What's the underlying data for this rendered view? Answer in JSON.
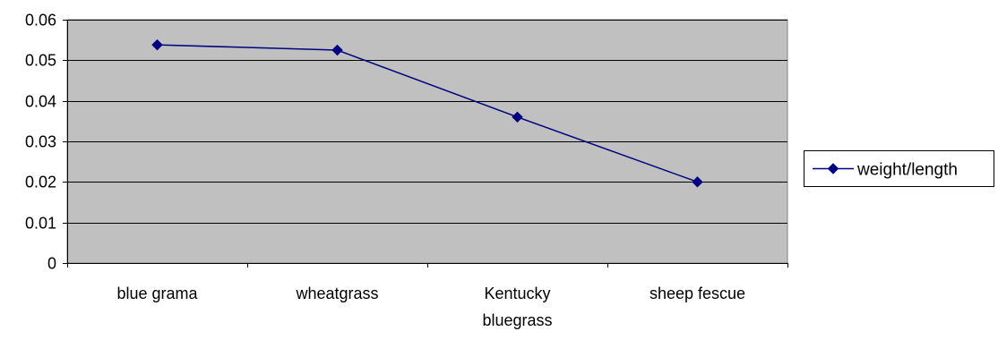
{
  "chart_data": {
    "type": "line",
    "title": "",
    "xlabel": "",
    "ylabel": "",
    "categories": [
      "blue grama",
      "wheatgrass",
      "Kentucky bluegrass",
      "sheep fescue"
    ],
    "category_label_lines": [
      [
        "blue grama"
      ],
      [
        "wheatgrass"
      ],
      [
        "Kentucky",
        "bluegrass"
      ],
      [
        "sheep fescue"
      ]
    ],
    "series": [
      {
        "name": "weight/length",
        "values": [
          0.0538,
          0.0525,
          0.036,
          0.02
        ],
        "color": "#000080",
        "marker": "diamond"
      }
    ],
    "ylim": [
      0,
      0.06
    ],
    "yticks": [
      0,
      0.01,
      0.02,
      0.03,
      0.04,
      0.05,
      0.06
    ],
    "ytick_labels": [
      "0",
      "0.01",
      "0.02",
      "0.03",
      "0.04",
      "0.05",
      "0.06"
    ],
    "grid": true,
    "legend_position": "right",
    "plot_background": "#c0c0c0",
    "grid_color": "#000000"
  }
}
